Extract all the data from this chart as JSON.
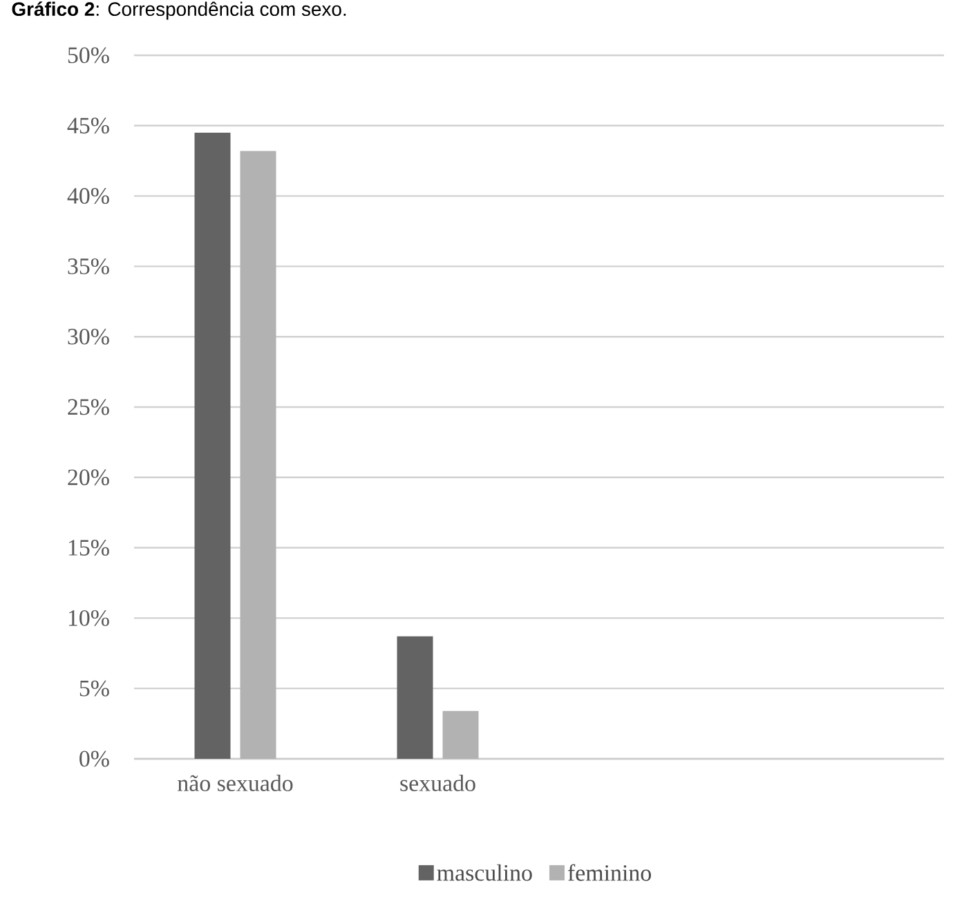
{
  "chart_data": {
    "type": "bar",
    "title": "**Gráfico 2**: Correspondência com sexo.",
    "categories": [
      "não sexuado",
      "sexuado",
      null,
      null
    ],
    "series": [
      {
        "name": "masculino",
        "color": "#636363",
        "values": [
          44.5,
          8.7,
          null,
          null
        ]
      },
      {
        "name": "feminino",
        "color": "#b2b2b2",
        "values": [
          43.2,
          3.4,
          null,
          null
        ]
      }
    ],
    "ylim": [
      0,
      50
    ],
    "yticks": [
      {
        "value": 0,
        "label": "0%"
      },
      {
        "value": 5,
        "label": "5%"
      },
      {
        "value": 10,
        "label": "10%"
      },
      {
        "value": 15,
        "label": "15%"
      },
      {
        "value": 20,
        "label": "20%"
      },
      {
        "value": 25,
        "label": "25%"
      },
      {
        "value": 30,
        "label": "30%"
      },
      {
        "value": 35,
        "label": "35%"
      },
      {
        "value": 40,
        "label": "40%"
      },
      {
        "value": 45,
        "label": "45%"
      },
      {
        "value": 50,
        "label": "50%"
      }
    ],
    "grid": "y",
    "legend": "bottom"
  }
}
